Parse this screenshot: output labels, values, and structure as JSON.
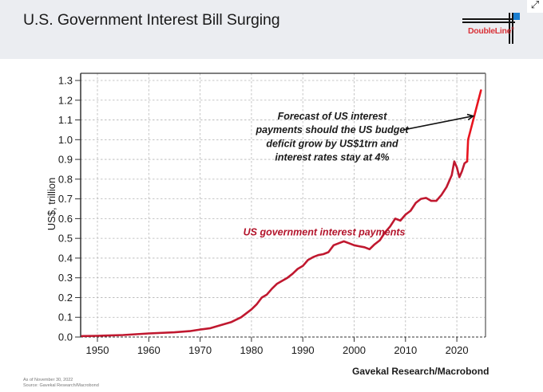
{
  "header": {
    "title": "U.S. Government Interest Bill Surging",
    "logo_text": "DoubleLine",
    "logo_mark": "®",
    "expand_icon": "expand-arrows-icon"
  },
  "footer": {
    "as_of": "As of November 30, 2022",
    "source_note": "Source: Gavekal Research/Macrobond",
    "credit": "Gavekal Research/Macrobond"
  },
  "colors": {
    "historical_line": "#c0182f",
    "forecast_line": "#e8141e",
    "gridline": "#b5b5b5",
    "axis": "#333333",
    "annotation_series": "#b3142b",
    "annotation_text": "#1a1a1a"
  },
  "chart_data": {
    "type": "line",
    "title": "U.S. Government Interest Bill Surging",
    "xlabel": "",
    "ylabel": "US$, trillion",
    "xlim": [
      1946.8,
      2026
    ],
    "ylim": [
      0,
      1.3
    ],
    "grid": true,
    "x_ticks": [
      1950,
      1960,
      1970,
      1980,
      1990,
      2000,
      2010,
      2020
    ],
    "x_tick_labels": [
      "1950",
      "1960",
      "1970",
      "1980",
      "1990",
      "2000",
      "2010",
      "2020"
    ],
    "y_ticks": [
      0,
      0.1,
      0.2,
      0.3,
      0.4,
      0.5,
      0.6,
      0.7,
      0.8,
      0.9,
      1.0,
      1.1,
      1.2,
      1.3
    ],
    "y_tick_labels": [
      "0.0",
      "0.1",
      "0.2",
      "0.3",
      "0.4",
      "0.5",
      "0.6",
      "0.7",
      "0.8",
      "0.9",
      "1.0",
      "1.1",
      "1.2",
      "1.3"
    ],
    "series": [
      {
        "name": "US government interest payments",
        "x": [
          1947,
          1950,
          1955,
          1960,
          1965,
          1968,
          1970,
          1972,
          1974,
          1976,
          1978,
          1980,
          1981,
          1982,
          1983,
          1984,
          1985,
          1986,
          1987,
          1988,
          1989,
          1990,
          1991,
          1992,
          1993,
          1994,
          1995,
          1996,
          1997,
          1998,
          1999,
          2000,
          2001,
          2002,
          2003,
          2004,
          2005,
          2006,
          2007,
          2008,
          2009,
          2010,
          2011,
          2012,
          2013,
          2014,
          2015,
          2016,
          2017,
          2018,
          2019,
          2019.5,
          2020,
          2020.5,
          2021,
          2021.5,
          2022
        ],
        "values": [
          0.005,
          0.006,
          0.01,
          0.018,
          0.024,
          0.03,
          0.038,
          0.045,
          0.06,
          0.075,
          0.1,
          0.14,
          0.165,
          0.2,
          0.215,
          0.245,
          0.27,
          0.285,
          0.3,
          0.32,
          0.345,
          0.36,
          0.39,
          0.405,
          0.415,
          0.42,
          0.43,
          0.465,
          0.475,
          0.485,
          0.475,
          0.465,
          0.46,
          0.455,
          0.445,
          0.47,
          0.49,
          0.53,
          0.56,
          0.6,
          0.59,
          0.62,
          0.64,
          0.68,
          0.7,
          0.705,
          0.69,
          0.69,
          0.72,
          0.76,
          0.82,
          0.89,
          0.86,
          0.81,
          0.84,
          0.88,
          0.89
        ],
        "color": "#c0182f"
      },
      {
        "name": "Forecast",
        "x": [
          2022,
          2022.2,
          2024.7
        ],
        "values": [
          0.89,
          1.0,
          1.25
        ],
        "color": "#e8141e"
      }
    ],
    "annotations": [
      {
        "text": "US government interest payments",
        "x": 1977,
        "y": 0.53,
        "style": "series-label"
      },
      {
        "lines": [
          "Forecast of US interest",
          "payments should the US budget",
          "deficit grow by US$1trn and",
          "interest rates stay at 4%"
        ],
        "x": 1999,
        "y": 1.05,
        "style": "callout",
        "arrow_to": [
          2023.2,
          1.12
        ]
      }
    ]
  }
}
